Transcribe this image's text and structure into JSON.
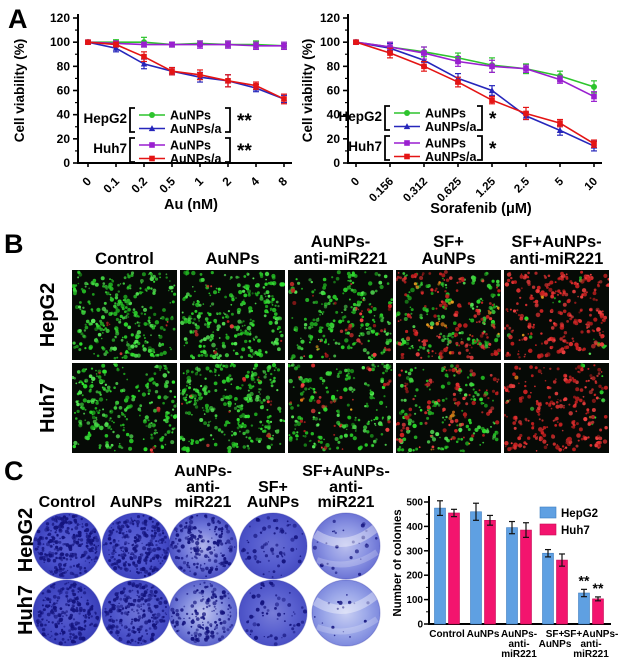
{
  "panels": {
    "A": {
      "label": "A"
    },
    "B": {
      "label": "B",
      "column_headers": [
        "Control",
        "AuNPs",
        "AuNPs-\nanti-miR221",
        "SF+\nAuNPs",
        "SF+AuNPs-\nanti-miR221"
      ],
      "row_labels": [
        "HepG2",
        "Huh7"
      ],
      "cells": [
        {
          "row": "HepG2",
          "condition": "Control",
          "green": 190,
          "red": 3,
          "orange": 0
        },
        {
          "row": "HepG2",
          "condition": "AuNPs",
          "green": 185,
          "red": 6,
          "orange": 0
        },
        {
          "row": "HepG2",
          "condition": "AuNPs-anti-miR221",
          "green": 130,
          "red": 22,
          "orange": 2
        },
        {
          "row": "HepG2",
          "condition": "SF+AuNPs",
          "green": 95,
          "red": 85,
          "orange": 12
        },
        {
          "row": "HepG2",
          "condition": "SF+AuNPs-anti-miR221",
          "green": 10,
          "red": 160,
          "orange": 3
        },
        {
          "row": "Huh7",
          "condition": "Control",
          "green": 175,
          "red": 3,
          "orange": 0
        },
        {
          "row": "Huh7",
          "condition": "AuNPs",
          "green": 170,
          "red": 8,
          "orange": 0
        },
        {
          "row": "Huh7",
          "condition": "AuNPs-anti-miR221",
          "green": 115,
          "red": 25,
          "orange": 2
        },
        {
          "row": "Huh7",
          "condition": "SF+AuNPs",
          "green": 95,
          "red": 60,
          "orange": 5
        },
        {
          "row": "Huh7",
          "condition": "SF+AuNPs-anti-miR221",
          "green": 8,
          "red": 145,
          "orange": 2
        }
      ]
    },
    "C": {
      "label": "C",
      "column_headers": [
        "Control",
        "AuNPs",
        "AuNPs-\nanti-\nmiR221",
        "SF+\nAuNPs",
        "SF+AuNPs-\nanti-\nmiR221"
      ],
      "row_labels": [
        "HepG2",
        "Huh7"
      ],
      "wells": [
        {
          "row": "HepG2",
          "condition": "Control",
          "base": "#4b52cd",
          "edge": "#3a40bb",
          "pale": 0.06,
          "speckles": 270,
          "swirl": false
        },
        {
          "row": "HepG2",
          "condition": "AuNPs",
          "base": "#4d54cf",
          "edge": "#3d43bf",
          "pale": 0.1,
          "speckles": 250,
          "swirl": false
        },
        {
          "row": "HepG2",
          "condition": "AuNPs-anti-miR221",
          "base": "#6f77da",
          "edge": "#4a50c4",
          "pale": 0.45,
          "speckles": 180,
          "swirl": false
        },
        {
          "row": "HepG2",
          "condition": "SF+AuNPs",
          "base": "#545bce",
          "edge": "#464cc2",
          "pale": 0.12,
          "speckles": 70,
          "swirl": false
        },
        {
          "row": "HepG2",
          "condition": "SF+AuNPs-anti-miR221",
          "base": "#8c95e3",
          "edge": "#6c74d5",
          "pale": 0.4,
          "speckles": 28,
          "swirl": true
        },
        {
          "row": "Huh7",
          "condition": "Control",
          "base": "#474dc8",
          "edge": "#393fb9",
          "pale": 0.08,
          "speckles": 235,
          "swirl": false
        },
        {
          "row": "Huh7",
          "condition": "AuNPs",
          "base": "#5158cd",
          "edge": "#4046c0",
          "pale": 0.15,
          "speckles": 215,
          "swirl": false
        },
        {
          "row": "Huh7",
          "condition": "AuNPs-anti-miR221",
          "base": "#828cde",
          "edge": "#5a62cc",
          "pale": 0.5,
          "speckles": 150,
          "swirl": false
        },
        {
          "row": "Huh7",
          "condition": "SF+AuNPs",
          "base": "#5a61d0",
          "edge": "#4a50c5",
          "pale": 0.18,
          "speckles": 60,
          "swirl": false
        },
        {
          "row": "Huh7",
          "condition": "SF+AuNPs-anti-miR221",
          "base": "#9ca8e9",
          "edge": "#7e8ade",
          "pale": 0.45,
          "speckles": 16,
          "swirl": true
        }
      ]
    }
  },
  "chart_data": [
    {
      "id": "au_viability",
      "type": "line",
      "xlabel": "Au (nM)",
      "ylabel": "Cell viability (%)",
      "ylim": [
        0,
        120
      ],
      "yticks": [
        0,
        20,
        40,
        60,
        80,
        100,
        120
      ],
      "categories": [
        "0",
        "0.1",
        "0.2",
        "0.5",
        "1",
        "2",
        "4",
        "8"
      ],
      "series": [
        {
          "name": "HepG2 AuNPs",
          "color": "#2dc42d",
          "marker": "circle",
          "values": [
            100,
            100,
            100,
            98,
            99,
            98,
            98,
            97
          ],
          "errors": [
            1,
            2,
            4,
            2,
            2,
            2,
            3,
            2
          ]
        },
        {
          "name": "HepG2 AuNPs/a",
          "color": "#2626bb",
          "marker": "triangle",
          "values": [
            100,
            95,
            82,
            76,
            71,
            68,
            62,
            53
          ],
          "errors": [
            1,
            3,
            4,
            3,
            4,
            5,
            3,
            3
          ]
        },
        {
          "name": "Huh7 AuNPs",
          "color": "#9a1fd0",
          "marker": "square",
          "values": [
            100,
            99,
            98,
            98,
            98,
            98,
            97,
            97
          ],
          "errors": [
            1,
            2,
            2,
            2,
            3,
            3,
            3,
            3
          ]
        },
        {
          "name": "Huh7 AuNPs/a",
          "color": "#e41414",
          "marker": "square",
          "values": [
            100,
            98,
            88,
            76,
            73,
            68,
            64,
            53
          ],
          "errors": [
            1,
            2,
            4,
            3,
            4,
            5,
            3,
            4
          ]
        }
      ],
      "legend": {
        "groups": [
          {
            "label": "HepG2",
            "entries": [
              "AuNPs",
              "AuNPs/a"
            ],
            "significance": "**"
          },
          {
            "label": "Huh7",
            "entries": [
              "AuNPs",
              "AuNPs/a"
            ],
            "significance": "**"
          }
        ]
      }
    },
    {
      "id": "sorafenib_viability",
      "type": "line",
      "xlabel": "Sorafenib (μM)",
      "ylabel": "Cell viability (%)",
      "ylim": [
        0,
        120
      ],
      "yticks": [
        0,
        20,
        40,
        60,
        80,
        100,
        120
      ],
      "categories": [
        "0",
        "0.156",
        "0.312",
        "0.625",
        "1.25",
        "2.5",
        "5",
        "10"
      ],
      "series": [
        {
          "name": "HepG2 AuNPs",
          "color": "#2dc42d",
          "marker": "circle",
          "values": [
            100,
            96,
            92,
            87,
            81,
            78,
            72,
            63
          ],
          "errors": [
            1,
            3,
            4,
            4,
            6,
            4,
            4,
            5
          ]
        },
        {
          "name": "HepG2 AuNPs/a",
          "color": "#2626bb",
          "marker": "triangle",
          "values": [
            100,
            95,
            85,
            70,
            60,
            39,
            27,
            14
          ],
          "errors": [
            1,
            4,
            5,
            4,
            4,
            3,
            4,
            4
          ]
        },
        {
          "name": "Huh7 AuNPs",
          "color": "#9a1fd0",
          "marker": "square",
          "values": [
            100,
            96,
            91,
            84,
            80,
            78,
            69,
            55
          ],
          "errors": [
            1,
            4,
            5,
            4,
            5,
            3,
            3,
            4
          ]
        },
        {
          "name": "Huh7 AuNPs/a",
          "color": "#e41414",
          "marker": "square",
          "values": [
            100,
            91,
            80,
            67,
            52,
            41,
            33,
            16
          ],
          "errors": [
            1,
            4,
            4,
            4,
            3,
            5,
            3,
            3
          ]
        }
      ],
      "legend": {
        "groups": [
          {
            "label": "HepG2",
            "entries": [
              "AuNPs",
              "AuNPs/a"
            ],
            "significance": "*"
          },
          {
            "label": "Huh7",
            "entries": [
              "AuNPs",
              "AuNPs/a"
            ],
            "significance": "*"
          }
        ]
      }
    },
    {
      "id": "colonies",
      "type": "bar",
      "xlabel": "",
      "ylabel": "Number of colonies",
      "ylim": [
        0,
        500
      ],
      "yticks": [
        0,
        100,
        200,
        300,
        400,
        500
      ],
      "categories": [
        "Control",
        "AuNPs",
        "AuNPs-\nanti-\nmiR221",
        "SF+\nAuNPs",
        "SF+AuNPs-\nanti-\nmiR221"
      ],
      "series": [
        {
          "name": "HepG2",
          "color": "#5fa0e2",
          "stroke": "#3c7cc0",
          "values": [
            475,
            460,
            395,
            290,
            127
          ],
          "errors": [
            30,
            35,
            25,
            15,
            15
          ]
        },
        {
          "name": "Huh7",
          "color": "#f3146e",
          "stroke": "#c70b55",
          "values": [
            455,
            425,
            385,
            262,
            103
          ],
          "errors": [
            15,
            20,
            30,
            25,
            8
          ]
        }
      ],
      "legend_position": "top-right",
      "annotations": [
        {
          "group": 4,
          "series": 0,
          "text": "**"
        },
        {
          "group": 4,
          "series": 1,
          "text": "**"
        }
      ]
    }
  ]
}
